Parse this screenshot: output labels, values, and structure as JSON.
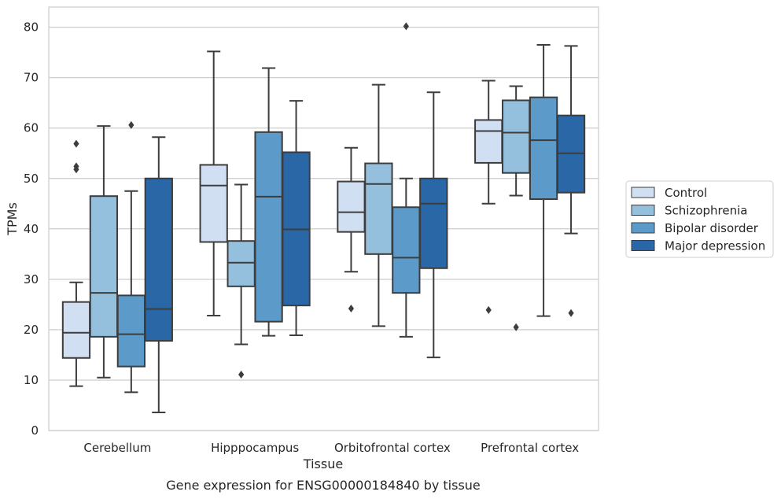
{
  "chart_data": {
    "type": "box",
    "title": "",
    "caption": "Gene expression for ENSG00000184840 by tissue",
    "xlabel": "Tissue",
    "ylabel": "TPMs",
    "ylim": [
      0,
      84
    ],
    "yticks": [
      0,
      10,
      20,
      30,
      40,
      50,
      60,
      70,
      80
    ],
    "grid": "horizontal",
    "legend_position": "right",
    "categories": [
      "Cerebellum",
      "Hipppocampus",
      "Orbitofrontal cortex",
      "Prefrontal cortex"
    ],
    "series": [
      {
        "name": "Control",
        "color": "#d0e0f2",
        "boxes": [
          {
            "whislo": 8.8,
            "q1": 14.4,
            "med": 19.4,
            "q3": 25.5,
            "whishi": 29.4,
            "fliers": [
              51.8,
              52.4,
              56.9
            ]
          },
          {
            "whislo": 22.8,
            "q1": 37.4,
            "med": 48.6,
            "q3": 52.7,
            "whishi": 75.2,
            "fliers": []
          },
          {
            "whislo": 31.5,
            "q1": 39.4,
            "med": 43.3,
            "q3": 49.4,
            "whishi": 56.1,
            "fliers": [
              24.2
            ]
          },
          {
            "whislo": 45.0,
            "q1": 53.1,
            "med": 59.4,
            "q3": 61.6,
            "whishi": 69.4,
            "fliers": [
              23.9
            ]
          }
        ]
      },
      {
        "name": "Schizophrenia",
        "color": "#94c0de",
        "boxes": [
          {
            "whislo": 10.5,
            "q1": 18.6,
            "med": 27.3,
            "q3": 46.5,
            "whishi": 60.4,
            "fliers": []
          },
          {
            "whislo": 17.1,
            "q1": 28.6,
            "med": 33.3,
            "q3": 37.6,
            "whishi": 48.8,
            "fliers": [
              11.1
            ]
          },
          {
            "whislo": 20.7,
            "q1": 35.0,
            "med": 48.9,
            "q3": 53.0,
            "whishi": 68.6,
            "fliers": []
          },
          {
            "whislo": 46.6,
            "q1": 51.1,
            "med": 59.1,
            "q3": 65.5,
            "whishi": 68.3,
            "fliers": [
              20.5
            ]
          }
        ]
      },
      {
        "name": "Bipolar disorder",
        "color": "#5b9ac9",
        "boxes": [
          {
            "whislo": 7.6,
            "q1": 12.7,
            "med": 19.1,
            "q3": 26.8,
            "whishi": 47.5,
            "fliers": [
              60.6
            ]
          },
          {
            "whislo": 18.8,
            "q1": 21.6,
            "med": 46.4,
            "q3": 59.2,
            "whishi": 71.9,
            "fliers": []
          },
          {
            "whislo": 18.6,
            "q1": 27.3,
            "med": 34.3,
            "q3": 44.3,
            "whishi": 50.0,
            "fliers": [
              80.2
            ]
          },
          {
            "whislo": 22.7,
            "q1": 45.9,
            "med": 57.6,
            "q3": 66.1,
            "whishi": 76.5,
            "fliers": []
          }
        ]
      },
      {
        "name": "Major depression",
        "color": "#2a67a7",
        "boxes": [
          {
            "whislo": 3.6,
            "q1": 17.8,
            "med": 24.1,
            "q3": 50.0,
            "whishi": 58.2,
            "fliers": []
          },
          {
            "whislo": 18.9,
            "q1": 24.8,
            "med": 39.9,
            "q3": 55.2,
            "whishi": 65.4,
            "fliers": []
          },
          {
            "whislo": 14.5,
            "q1": 32.2,
            "med": 45.0,
            "q3": 50.0,
            "whishi": 67.1,
            "fliers": []
          },
          {
            "whislo": 39.1,
            "q1": 47.2,
            "med": 55.0,
            "q3": 62.5,
            "whishi": 76.3,
            "fliers": [
              23.3
            ]
          }
        ]
      }
    ]
  }
}
